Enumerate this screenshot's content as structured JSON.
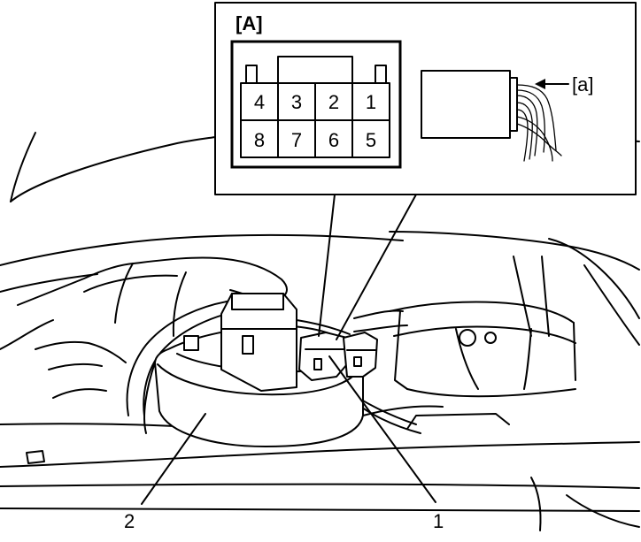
{
  "inset": {
    "label": "[A]",
    "pin_rows": [
      [
        "4",
        "3",
        "2",
        "1"
      ],
      [
        "8",
        "7",
        "6",
        "5"
      ]
    ],
    "wire_label": "[a]"
  },
  "callouts": {
    "part_1": "1",
    "part_2": "2"
  },
  "colors": {
    "line": "#000000",
    "background": "#ffffff"
  }
}
